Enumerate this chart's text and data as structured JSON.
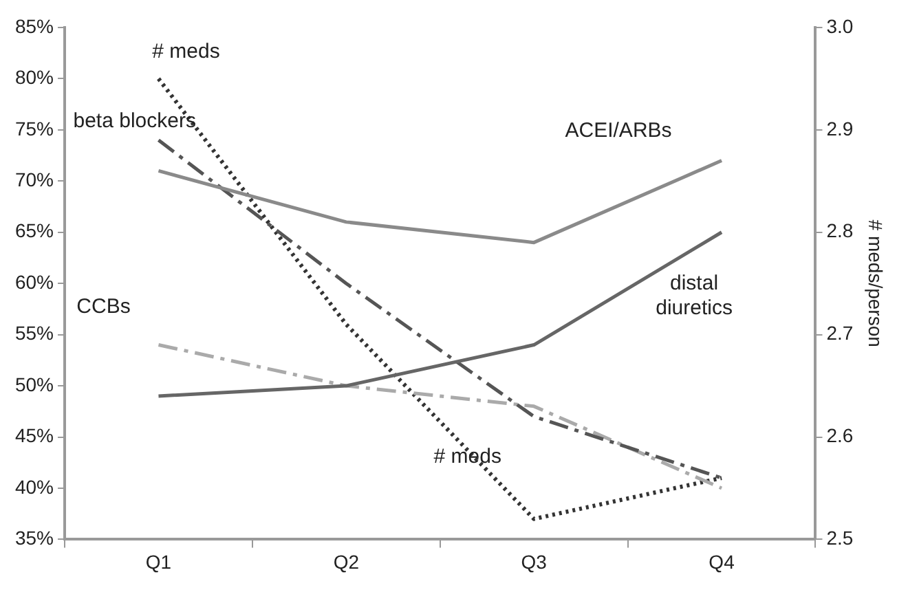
{
  "chart_data": {
    "type": "line",
    "categories": [
      "Q1",
      "Q2",
      "Q3",
      "Q4"
    ],
    "y2label": "# meds/person",
    "ylim": [
      35,
      85
    ],
    "yticks": [
      {
        "value": 35,
        "label": "35%"
      },
      {
        "value": 40,
        "label": "40%"
      },
      {
        "value": 45,
        "label": "45%"
      },
      {
        "value": 50,
        "label": "50%"
      },
      {
        "value": 55,
        "label": "55%"
      },
      {
        "value": 60,
        "label": "60%"
      },
      {
        "value": 65,
        "label": "65%"
      },
      {
        "value": 70,
        "label": "70%"
      },
      {
        "value": 75,
        "label": "75%"
      },
      {
        "value": 80,
        "label": "80%"
      },
      {
        "value": 85,
        "label": "85%"
      }
    ],
    "y2lim": [
      2.5,
      3.0
    ],
    "y2ticks": [
      {
        "value": 2.5,
        "label": "2.5"
      },
      {
        "value": 2.6,
        "label": "2.6"
      },
      {
        "value": 2.7,
        "label": "2.7"
      },
      {
        "value": 2.8,
        "label": "2.8"
      },
      {
        "value": 2.9,
        "label": "2.9"
      },
      {
        "value": 3.0,
        "label": "3.0"
      }
    ],
    "grid": false,
    "legend": false,
    "marker": "none",
    "series": [
      {
        "name": "ACEI/ARBs",
        "color": "#8a8a8a",
        "line_style": "solid",
        "values": [
          71,
          66,
          64,
          72
        ]
      },
      {
        "name": "distal diuretics",
        "color": "#666666",
        "line_style": "solid",
        "values": [
          49,
          50,
          54,
          65
        ]
      },
      {
        "name": "beta blockers",
        "color": "#555555",
        "line_style": "dashed",
        "values": [
          74,
          60,
          47,
          41
        ]
      },
      {
        "name": "CCBs",
        "color": "#aaaaaa",
        "line_style": "dashed",
        "values": [
          54,
          50,
          48,
          40
        ]
      },
      {
        "name": "# meds",
        "color": "#333333",
        "line_style": "dotted",
        "axis": "y2",
        "values": [
          2.95,
          2.71,
          2.52,
          2.56
        ]
      }
    ],
    "annotations": [
      "# meds"
    ]
  }
}
